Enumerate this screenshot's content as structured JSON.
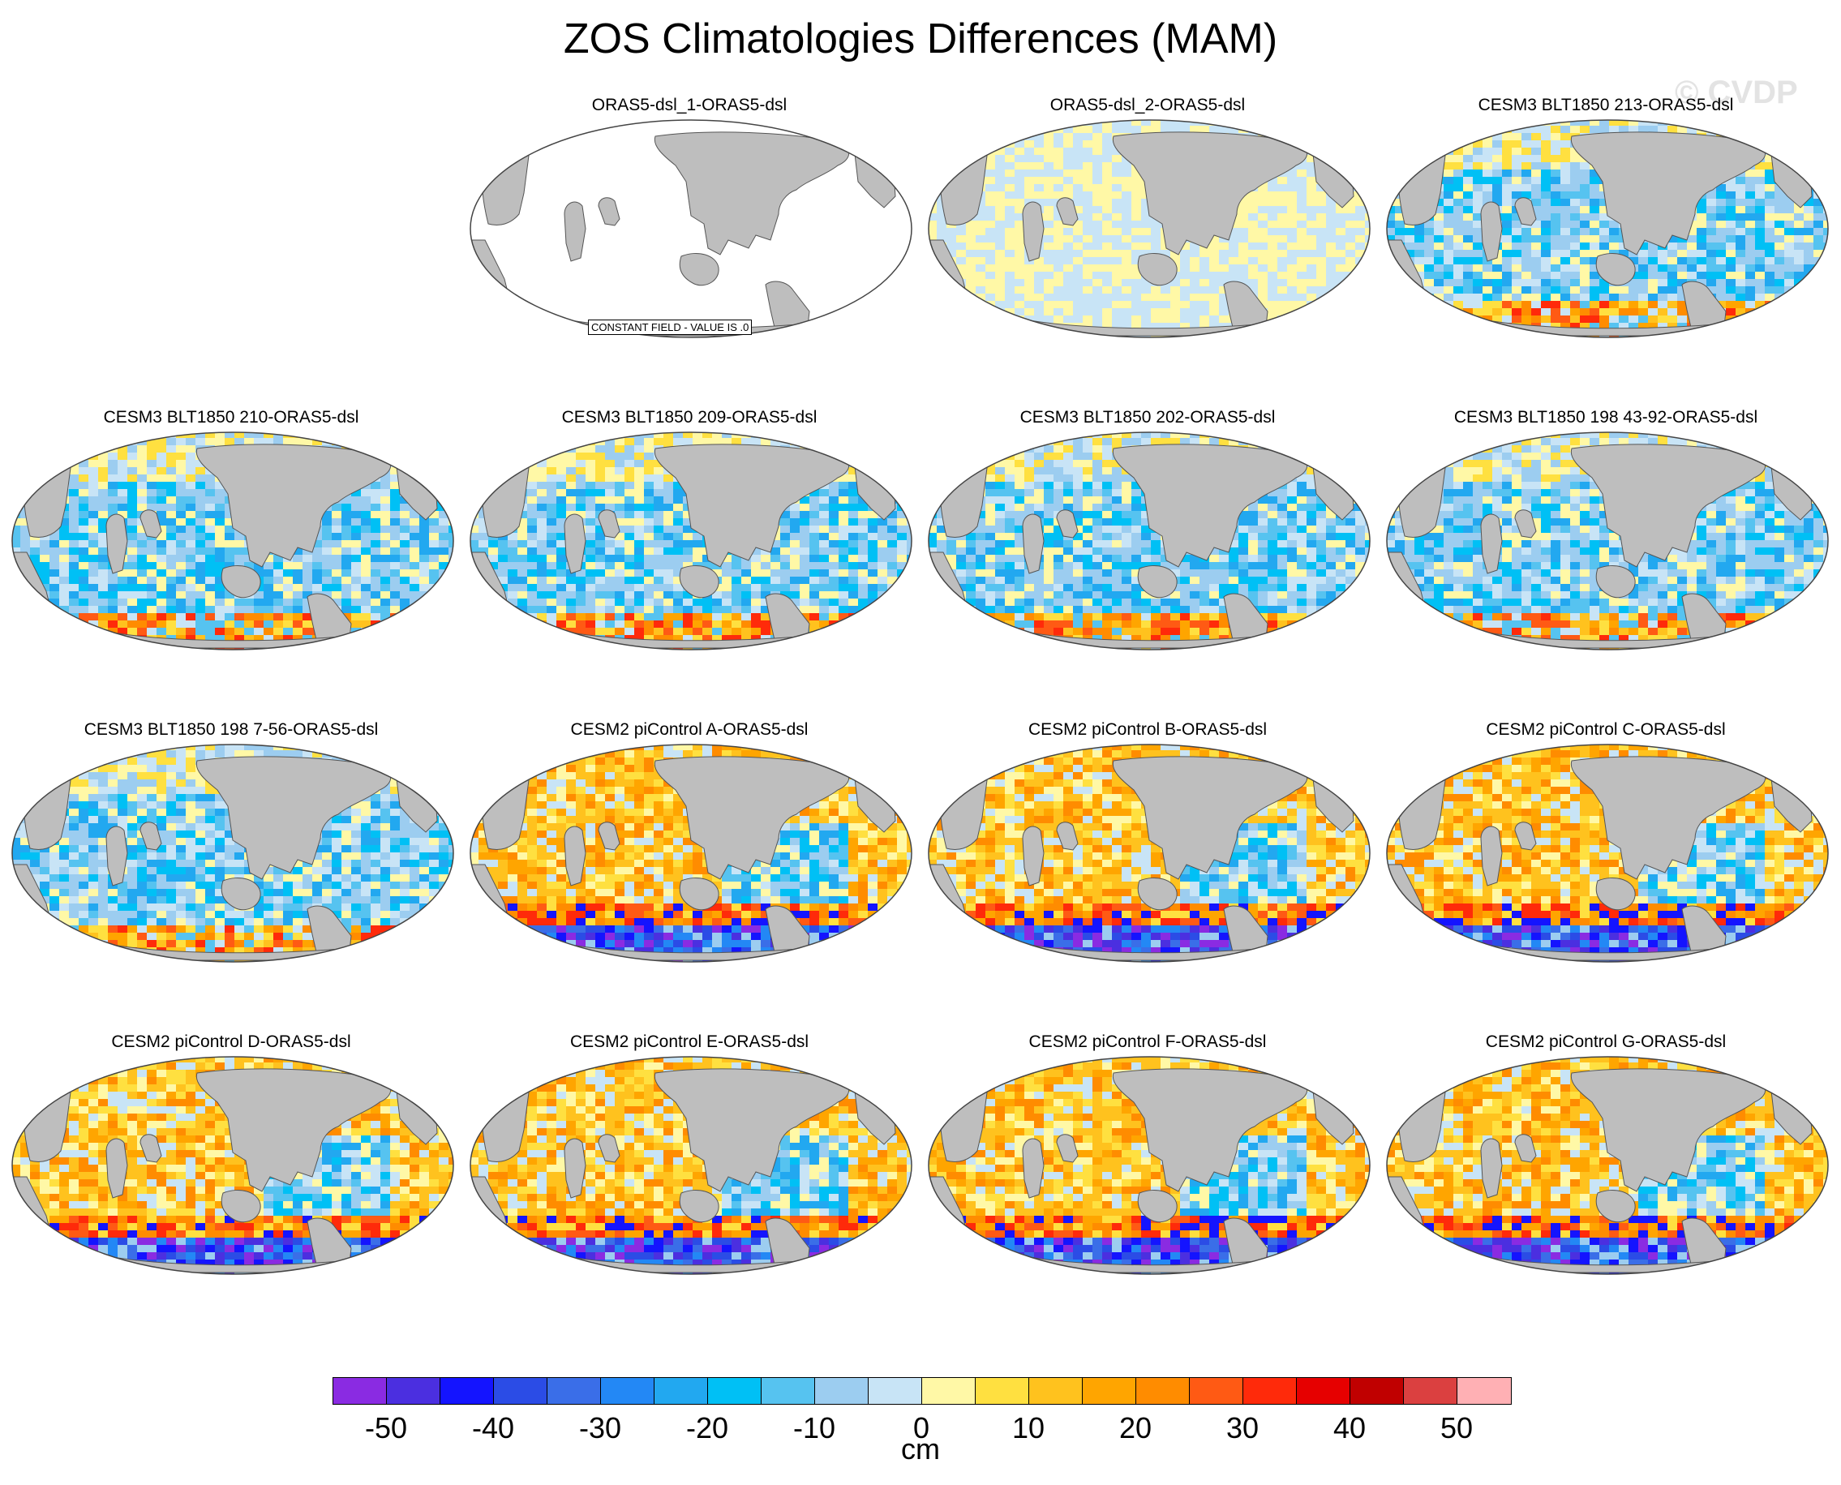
{
  "figure": {
    "title": "ZOS Climatologies Differences (MAM)",
    "watermark": "© CVDP",
    "constant_field_label": "CONSTANT FIELD - VALUE IS .0"
  },
  "panels": [
    {
      "title": "ORAS5-dsl_1-ORAS5-dsl",
      "pattern": "constant"
    },
    {
      "title": "ORAS5-dsl_2-ORAS5-dsl",
      "pattern": "near-zero"
    },
    {
      "title": "CESM3 BLT1850 213-ORAS5-dsl",
      "pattern": "cesm3"
    },
    {
      "title": "CESM3 BLT1850 210-ORAS5-dsl",
      "pattern": "cesm3"
    },
    {
      "title": "CESM3 BLT1850 209-ORAS5-dsl",
      "pattern": "cesm3"
    },
    {
      "title": "CESM3 BLT1850 202-ORAS5-dsl",
      "pattern": "cesm3"
    },
    {
      "title": "CESM3 BLT1850 198 43-92-ORAS5-dsl",
      "pattern": "cesm3"
    },
    {
      "title": "CESM3 BLT1850 198 7-56-ORAS5-dsl",
      "pattern": "cesm3"
    },
    {
      "title": "CESM2 piControl A-ORAS5-dsl",
      "pattern": "cesm2"
    },
    {
      "title": "CESM2 piControl B-ORAS5-dsl",
      "pattern": "cesm2"
    },
    {
      "title": "CESM2 piControl C-ORAS5-dsl",
      "pattern": "cesm2"
    },
    {
      "title": "CESM2 piControl D-ORAS5-dsl",
      "pattern": "cesm2"
    },
    {
      "title": "CESM2 piControl E-ORAS5-dsl",
      "pattern": "cesm2"
    },
    {
      "title": "CESM2 piControl F-ORAS5-dsl",
      "pattern": "cesm2"
    },
    {
      "title": "CESM2 piControl G-ORAS5-dsl",
      "pattern": "cesm2"
    }
  ],
  "colorbar": {
    "units": "cm",
    "tick_labels": [
      "-50",
      "-40",
      "-30",
      "-20",
      "-10",
      "0",
      "10",
      "20",
      "30",
      "40",
      "50"
    ],
    "colors": [
      "#8a2be2",
      "#4b2fe0",
      "#1414ff",
      "#2b4ce6",
      "#3a6ee8",
      "#2388f5",
      "#22a8f0",
      "#00c0f5",
      "#56c3f0",
      "#9ccdf0",
      "#c8e4f6",
      "#fff8a6",
      "#ffe040",
      "#ffc21e",
      "#ffa500",
      "#ff8c00",
      "#ff5a14",
      "#ff2a0a",
      "#e60000",
      "#c00000",
      "#db4040",
      "#ffb0b4"
    ]
  },
  "colors": {
    "land": "#bebebe",
    "coast": "#555555",
    "ocean_blank": "#ffffff"
  }
}
